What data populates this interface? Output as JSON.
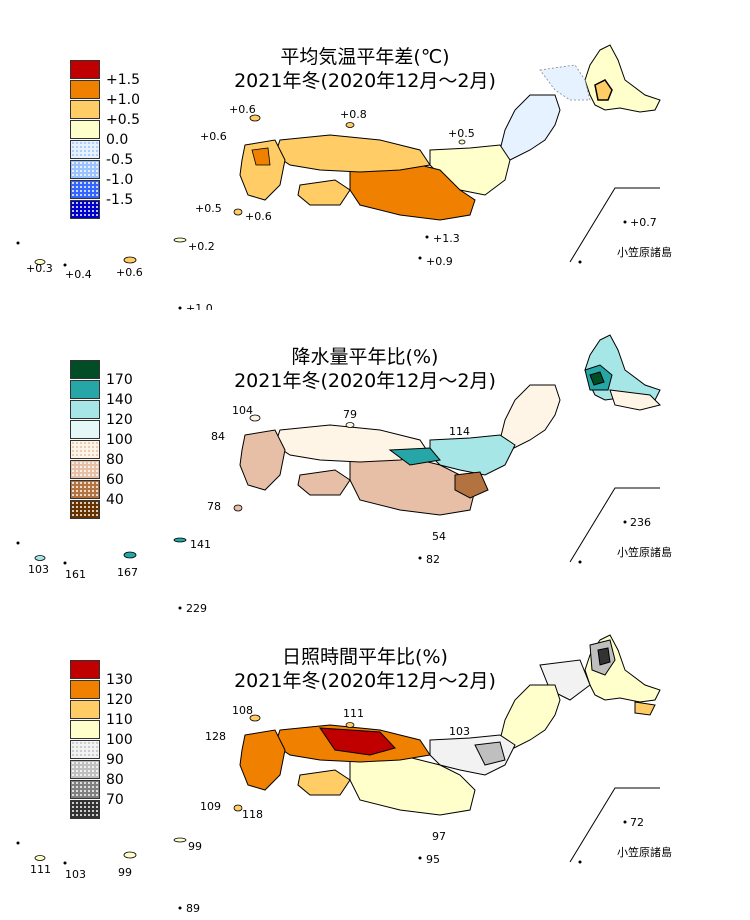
{
  "panels": [
    {
      "title_line1": "平均気温平年差(℃)",
      "title_line2": "2021年冬(2020年12月～2月)",
      "legend": [
        {
          "label": "+1.5",
          "color": "#c00000"
        },
        {
          "label": "+1.0",
          "color": "#f08000"
        },
        {
          "label": "+0.5",
          "color": "#ffcc66"
        },
        {
          "label": "0.0",
          "color": "#ffffcc"
        },
        {
          "label": "-0.5",
          "color": "#e6f2ff"
        },
        {
          "label": "-1.0",
          "color": "#99c2ff"
        },
        {
          "label": "-1.5",
          "color": "#3366ff"
        },
        {
          "label": "",
          "color": "#0000cc"
        }
      ],
      "annotations": [
        "+0.6",
        "+0.8",
        "+0.6",
        "+0.5",
        "+0.5",
        "+0.6",
        "+0.2",
        "+1.3",
        "+0.9",
        "+0.3",
        "+0.4",
        "+0.6",
        "+1.0",
        "+0.7"
      ],
      "ogasawara": "小笠原諸島"
    },
    {
      "title_line1": "降水量平年比(%)",
      "title_line2": "2021年冬(2020年12月～2月)",
      "legend": [
        {
          "label": "170",
          "color": "#004d26"
        },
        {
          "label": "140",
          "color": "#26a6a6"
        },
        {
          "label": "120",
          "color": "#a6e6e6"
        },
        {
          "label": "100",
          "color": "#e6f7f7"
        },
        {
          "label": "80",
          "color": "#fff5e6"
        },
        {
          "label": "60",
          "color": "#e6bfa6"
        },
        {
          "label": "40",
          "color": "#b37340"
        },
        {
          "label": "",
          "color": "#663300"
        }
      ],
      "annotations": [
        "104",
        "79",
        "84",
        "114",
        "78",
        "54",
        "82",
        "141",
        "103",
        "161",
        "167",
        "229",
        "236"
      ],
      "ogasawara": "小笠原諸島"
    },
    {
      "title_line1": "日照時間平年比(%)",
      "title_line2": "2021年冬(2020年12月～2月)",
      "legend": [
        {
          "label": "130",
          "color": "#c00000"
        },
        {
          "label": "120",
          "color": "#f08000"
        },
        {
          "label": "110",
          "color": "#ffcc66"
        },
        {
          "label": "100",
          "color": "#ffffcc"
        },
        {
          "label": "90",
          "color": "#f2f2f2"
        },
        {
          "label": "80",
          "color": "#bfbfbf"
        },
        {
          "label": "70",
          "color": "#808080"
        },
        {
          "label": "",
          "color": "#333333"
        }
      ],
      "annotations": [
        "108",
        "111",
        "128",
        "103",
        "109",
        "118",
        "97",
        "95",
        "111",
        "103",
        "99",
        "99",
        "89",
        "72"
      ],
      "ogasawara": "小笠原諸島"
    }
  ]
}
